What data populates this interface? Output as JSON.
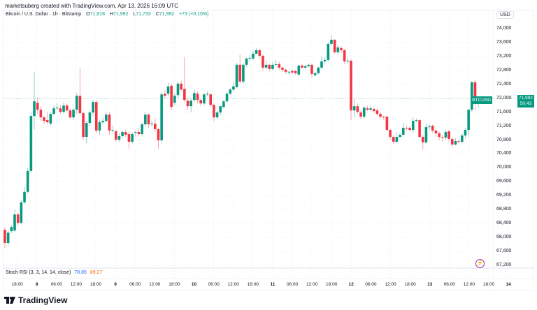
{
  "credit": "marketsuberg created with TradingView.com, Apr 13, 2026 16:09 UTC",
  "symbol_title": "Bitcoin / U.S. Dollar · 1h · Bitstamp",
  "ohlc": {
    "o_label": "O",
    "o": "71,918",
    "h_label": "H",
    "h": "71,992",
    "l_label": "L",
    "l": "71,733",
    "c_label": "C",
    "c": "71,992",
    "change": "+73 (+0.10%)"
  },
  "currency": "USD",
  "price_tag": {
    "symbol": "BTCUSD",
    "price": "71,992",
    "countdown": "50:43"
  },
  "price_axis": [
    "74,000",
    "73,600",
    "73,200",
    "72,800",
    "72,400",
    "72,000",
    "71,600",
    "71,200",
    "70,800",
    "70,400",
    "70,000",
    "69,600",
    "69,200",
    "68,800",
    "68,400",
    "68,000",
    "67,600",
    "67,200"
  ],
  "time_axis": [
    "18:00",
    "8",
    "06:00",
    "12:00",
    "18:00",
    "9",
    "06:00",
    "12:00",
    "18:00",
    "10",
    "06:00",
    "12:00",
    "18:00",
    "11",
    "06:00",
    "12:00",
    "18:00",
    "12",
    "06:00",
    "12:00",
    "18:00",
    "13",
    "06:00",
    "12:00",
    "18:00",
    "14"
  ],
  "indicator": {
    "label": "Stoch RSI (3, 3, 14, 14, close)",
    "k": "78.85",
    "d": "89.27",
    "k_color": "#2962ff",
    "d_color": "#ff6d00"
  },
  "brand": "TradingView",
  "colors": {
    "up": "#089981",
    "down": "#f23645"
  },
  "chart_data": {
    "type": "candlestick",
    "interval": "1h",
    "ylim": [
      67200,
      74000
    ],
    "last_price": 71992,
    "grid": true,
    "candles_ohlc": [
      [
        68220,
        68300,
        67700,
        67840
      ],
      [
        67840,
        68200,
        67760,
        68140
      ],
      [
        68180,
        68360,
        68120,
        68300
      ],
      [
        68200,
        68800,
        68150,
        68660
      ],
      [
        68660,
        68720,
        68350,
        68420
      ],
      [
        68420,
        69080,
        68380,
        69010
      ],
      [
        69010,
        69450,
        68950,
        69310
      ],
      [
        69310,
        70000,
        69250,
        69910
      ],
      [
        69910,
        71600,
        69850,
        71490
      ],
      [
        71490,
        72750,
        71100,
        71910
      ],
      [
        71870,
        72020,
        71550,
        71670
      ],
      [
        71670,
        71780,
        71350,
        71450
      ],
      [
        71450,
        71500,
        71250,
        71350
      ],
      [
        71370,
        71600,
        71250,
        71310
      ],
      [
        71270,
        71600,
        71220,
        71550
      ],
      [
        71550,
        71800,
        71500,
        71710
      ],
      [
        71710,
        71850,
        71650,
        71730
      ],
      [
        71710,
        71800,
        71550,
        71610
      ],
      [
        71610,
        71880,
        71560,
        71790
      ],
      [
        71790,
        71850,
        71600,
        71650
      ],
      [
        71650,
        71700,
        71400,
        71450
      ],
      [
        71450,
        71720,
        71380,
        71670
      ],
      [
        71670,
        72150,
        71550,
        72070
      ],
      [
        72070,
        72860,
        71500,
        71570
      ],
      [
        71570,
        71620,
        70800,
        70890
      ],
      [
        70890,
        71350,
        70700,
        71290
      ],
      [
        71290,
        71650,
        71200,
        71590
      ],
      [
        71590,
        71950,
        71500,
        71890
      ],
      [
        71890,
        71950,
        70990,
        71070
      ],
      [
        71070,
        71400,
        70950,
        71310
      ],
      [
        71310,
        71450,
        71250,
        71350
      ],
      [
        71350,
        71600,
        71300,
        71530
      ],
      [
        71530,
        71600,
        70950,
        71070
      ],
      [
        71070,
        71200,
        71000,
        71090
      ],
      [
        71050,
        71100,
        70750,
        70810
      ],
      [
        70810,
        71000,
        70750,
        70910
      ],
      [
        70910,
        71080,
        70850,
        71030
      ],
      [
        71030,
        71100,
        70880,
        70950
      ],
      [
        70970,
        71050,
        70550,
        70750
      ],
      [
        70750,
        71020,
        70700,
        70970
      ],
      [
        71010,
        71080,
        70900,
        71030
      ],
      [
        71030,
        71150,
        70900,
        70970
      ],
      [
        70970,
        71300,
        70900,
        71250
      ],
      [
        71250,
        71600,
        71200,
        71530
      ],
      [
        71530,
        71570,
        71150,
        71250
      ],
      [
        71250,
        71350,
        71200,
        71270
      ],
      [
        71270,
        71400,
        71050,
        71110
      ],
      [
        71110,
        71150,
        70550,
        70790
      ],
      [
        70790,
        72200,
        70700,
        72110
      ],
      [
        72130,
        72250,
        72000,
        72070
      ],
      [
        72130,
        72450,
        72050,
        72340
      ],
      [
        72360,
        72420,
        71650,
        71750
      ],
      [
        71870,
        72150,
        71800,
        72070
      ],
      [
        72090,
        72480,
        72000,
        72420
      ],
      [
        72420,
        72500,
        72200,
        72250
      ],
      [
        72270,
        73180,
        71880,
        71950
      ],
      [
        71930,
        72000,
        71650,
        71770
      ],
      [
        71770,
        72000,
        71600,
        71930
      ],
      [
        71950,
        72250,
        71900,
        72150
      ],
      [
        72130,
        72200,
        71850,
        71950
      ],
      [
        71950,
        72000,
        71780,
        71850
      ],
      [
        71850,
        72150,
        71800,
        72110
      ],
      [
        72110,
        72200,
        72050,
        72130
      ],
      [
        72110,
        72150,
        71750,
        71810
      ],
      [
        71810,
        71850,
        71350,
        71450
      ],
      [
        71450,
        71650,
        71400,
        71590
      ],
      [
        71590,
        71800,
        71500,
        71770
      ],
      [
        71750,
        71950,
        71700,
        71910
      ],
      [
        71910,
        72200,
        71870,
        72130
      ],
      [
        72130,
        72300,
        72100,
        72250
      ],
      [
        72250,
        72450,
        72200,
        72340
      ],
      [
        72320,
        73020,
        72280,
        72960
      ],
      [
        72960,
        73250,
        72420,
        72480
      ],
      [
        72480,
        73000,
        72420,
        72960
      ],
      [
        72960,
        73180,
        72900,
        73140
      ],
      [
        73140,
        73250,
        73050,
        73160
      ],
      [
        73140,
        73350,
        73100,
        73280
      ],
      [
        73280,
        73450,
        73250,
        73380
      ],
      [
        73380,
        73420,
        73150,
        73220
      ],
      [
        73220,
        73250,
        72800,
        72880
      ],
      [
        72880,
        73080,
        72840,
        72960
      ],
      [
        72960,
        73000,
        72780,
        72840
      ],
      [
        72840,
        73050,
        72800,
        72960
      ],
      [
        72960,
        73100,
        72900,
        72980
      ],
      [
        72980,
        73050,
        72820,
        72880
      ],
      [
        72880,
        72900,
        72760,
        72820
      ],
      [
        72820,
        72860,
        72700,
        72760
      ],
      [
        72760,
        72800,
        72680,
        72760
      ],
      [
        72780,
        72820,
        72700,
        72740
      ],
      [
        72780,
        72820,
        72680,
        72720
      ],
      [
        72680,
        72960,
        72640,
        72940
      ],
      [
        72940,
        72980,
        72840,
        72880
      ],
      [
        72880,
        72960,
        72840,
        72920
      ],
      [
        72920,
        73000,
        72880,
        72960
      ],
      [
        72960,
        73000,
        72600,
        72700
      ],
      [
        72660,
        72760,
        72620,
        72720
      ],
      [
        72720,
        72920,
        72680,
        72880
      ],
      [
        72880,
        73200,
        72840,
        73060
      ],
      [
        73060,
        73180,
        73000,
        73100
      ],
      [
        73100,
        73620,
        73050,
        73560
      ],
      [
        73560,
        73820,
        73520,
        73680
      ],
      [
        73680,
        73700,
        73280,
        73320
      ],
      [
        73320,
        73540,
        73260,
        73460
      ],
      [
        73440,
        73500,
        73300,
        73380
      ],
      [
        73380,
        73420,
        72980,
        73060
      ],
      [
        73060,
        73160,
        73000,
        73080
      ],
      [
        73080,
        73120,
        71370,
        71650
      ],
      [
        71650,
        72000,
        71450,
        71770
      ],
      [
        71770,
        71850,
        71550,
        71610
      ],
      [
        71590,
        71650,
        71400,
        71470
      ],
      [
        71470,
        71780,
        71420,
        71730
      ],
      [
        71710,
        71780,
        71630,
        71670
      ],
      [
        71670,
        71780,
        71640,
        71710
      ],
      [
        71690,
        71750,
        71580,
        71630
      ],
      [
        71650,
        71720,
        71500,
        71550
      ],
      [
        71550,
        71600,
        71400,
        71470
      ],
      [
        71470,
        71500,
        71380,
        71450
      ],
      [
        71470,
        71500,
        71050,
        71090
      ],
      [
        71090,
        71120,
        70820,
        70890
      ],
      [
        70890,
        70950,
        70680,
        70750
      ],
      [
        70750,
        71020,
        70700,
        70890
      ],
      [
        70890,
        71000,
        70850,
        70950
      ],
      [
        70950,
        71300,
        70900,
        71150
      ],
      [
        71150,
        71200,
        71080,
        71130
      ],
      [
        71150,
        71200,
        71050,
        71090
      ],
      [
        71090,
        71450,
        71000,
        71350
      ],
      [
        71350,
        71420,
        71300,
        71370
      ],
      [
        71370,
        71400,
        70850,
        70890
      ],
      [
        70890,
        70950,
        70530,
        70730
      ],
      [
        70730,
        71280,
        70680,
        71170
      ],
      [
        71170,
        71250,
        71100,
        71190
      ],
      [
        71210,
        71250,
        71000,
        71070
      ],
      [
        71070,
        71120,
        70900,
        70990
      ],
      [
        70990,
        71050,
        70800,
        70890
      ],
      [
        70890,
        70950,
        70750,
        70870
      ],
      [
        70870,
        71100,
        70800,
        71030
      ],
      [
        71050,
        71100,
        70750,
        70830
      ],
      [
        70830,
        70880,
        70600,
        70670
      ],
      [
        70670,
        70850,
        70640,
        70770
      ],
      [
        70770,
        70820,
        70700,
        70750
      ],
      [
        70750,
        70980,
        70700,
        70930
      ],
      [
        70930,
        71150,
        70850,
        71090
      ],
      [
        71090,
        71700,
        70900,
        71670
      ],
      [
        71670,
        72500,
        71600,
        72460
      ],
      [
        72460,
        72540,
        71650,
        71890
      ],
      [
        71918,
        71992,
        71733,
        71992
      ]
    ]
  }
}
